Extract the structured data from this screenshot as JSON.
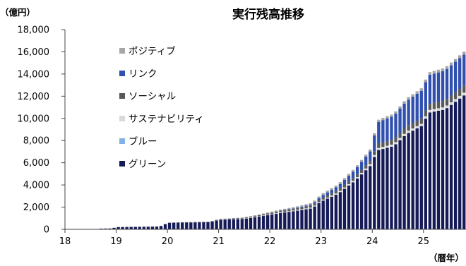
{
  "chart_data": {
    "type": "bar",
    "stacked": true,
    "title": "実行残高推移",
    "y_unit": "（億円）",
    "x_unit": "（暦年）",
    "ylim": [
      0,
      18000
    ],
    "y_ticks": [
      "0",
      "2,000",
      "4,000",
      "6,000",
      "8,000",
      "10,000",
      "12,000",
      "14,000",
      "16,000",
      "18,000"
    ],
    "xlim": [
      2018,
      2025.83
    ],
    "x_ticks": [
      {
        "value": 2018,
        "label": "18"
      },
      {
        "value": 2019,
        "label": "19"
      },
      {
        "value": 2020,
        "label": "20"
      },
      {
        "value": 2021,
        "label": "21"
      },
      {
        "value": 2022,
        "label": "22"
      },
      {
        "value": 2023,
        "label": "23"
      },
      {
        "value": 2024,
        "label": "24"
      },
      {
        "value": 2025,
        "label": "25"
      }
    ],
    "grid": false,
    "legend_position": "top-left",
    "anchors": {
      "x": [
        2018.0,
        2018.58,
        2018.67,
        2018.92,
        2019.0,
        2019.83,
        2019.92,
        2020.0,
        2020.83,
        2021.0,
        2021.5,
        2021.67,
        2022.0,
        2022.17,
        2022.5,
        2022.83,
        2023.0,
        2023.33,
        2023.67,
        2024.0,
        2024.08,
        2024.17,
        2024.42,
        2024.67,
        2025.0,
        2025.08,
        2025.42,
        2025.83
      ],
      "green": [
        0,
        0,
        60,
        80,
        200,
        250,
        350,
        600,
        660,
        850,
        950,
        1050,
        1300,
        1450,
        1650,
        1900,
        2500,
        3200,
        4400,
        5900,
        7100,
        7200,
        7500,
        8600,
        9400,
        10500,
        10800,
        12200
      ],
      "blue": [
        0,
        0,
        0,
        0,
        0,
        0,
        0,
        0,
        0,
        0,
        0,
        0,
        0,
        0,
        0,
        0,
        0,
        0,
        0,
        0,
        0,
        0,
        0,
        0,
        0,
        0,
        0,
        0
      ],
      "sustainable": [
        0,
        0,
        0,
        0,
        0,
        0,
        0,
        0,
        10,
        20,
        30,
        40,
        50,
        60,
        70,
        80,
        90,
        110,
        130,
        160,
        180,
        180,
        190,
        200,
        210,
        220,
        230,
        250
      ],
      "social": [
        0,
        0,
        0,
        0,
        0,
        0,
        0,
        0,
        20,
        40,
        60,
        80,
        120,
        140,
        150,
        180,
        200,
        230,
        260,
        300,
        400,
        400,
        430,
        470,
        500,
        550,
        580,
        650
      ],
      "link": [
        0,
        0,
        0,
        0,
        0,
        0,
        0,
        0,
        0,
        0,
        0,
        0,
        0,
        0,
        50,
        100,
        200,
        350,
        600,
        900,
        1900,
        2000,
        2100,
        2300,
        2500,
        2600,
        2700,
        2800
      ],
      "positive": [
        0,
        0,
        0,
        0,
        0,
        0,
        0,
        0,
        0,
        20,
        40,
        60,
        80,
        100,
        110,
        130,
        150,
        160,
        170,
        180,
        200,
        200,
        200,
        220,
        230,
        240,
        250,
        260
      ]
    },
    "series": [
      {
        "name": "ポジティブ",
        "key": "positive",
        "color": "#a6a6a6"
      },
      {
        "name": "リンク",
        "key": "link",
        "color": "#3050b0"
      },
      {
        "name": "ソーシャル",
        "key": "social",
        "color": "#595959"
      },
      {
        "name": "サステナビリティ",
        "key": "sustainable",
        "color": "#d9d9d9"
      },
      {
        "name": "ブルー",
        "key": "blue",
        "color": "#7fb2e5"
      },
      {
        "name": "グリーン",
        "key": "green",
        "color": "#161b57"
      }
    ]
  }
}
